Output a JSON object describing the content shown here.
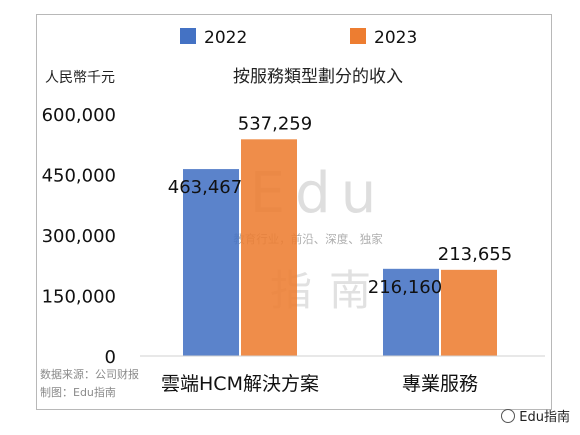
{
  "chart_data": {
    "type": "bar",
    "title": "按服務類型劃分的收入",
    "ylabel": "人民幣千元",
    "categories": [
      "雲端HCM解決方案",
      "專業服務"
    ],
    "series": [
      {
        "name": "2022",
        "values": [
          463467,
          216160
        ],
        "labels": [
          "463,467",
          "216,160"
        ]
      },
      {
        "name": "2023",
        "values": [
          537259,
          213655
        ],
        "labels": [
          "537,259",
          "213,655"
        ]
      }
    ],
    "ylim": [
      0,
      600000
    ],
    "yticks": [
      0,
      150000,
      300000,
      450000,
      600000
    ],
    "ytick_labels": [
      "0",
      "150,000",
      "300,000",
      "450,000",
      "600,000"
    ],
    "legend_position": "top",
    "grid": false
  },
  "colors": {
    "series_2022": "#4472c4",
    "series_2023": "#ed7d31"
  },
  "footer": {
    "source": "数据来源：公司财报",
    "maker": "制图：Edu指南"
  },
  "watermark": {
    "main": "Edu",
    "sub": "教育行业，前沿、深度、独家",
    "cn1": "指",
    "cn2": "南"
  },
  "brand": {
    "label": "Edu指南",
    "icon": "wechat-icon"
  }
}
